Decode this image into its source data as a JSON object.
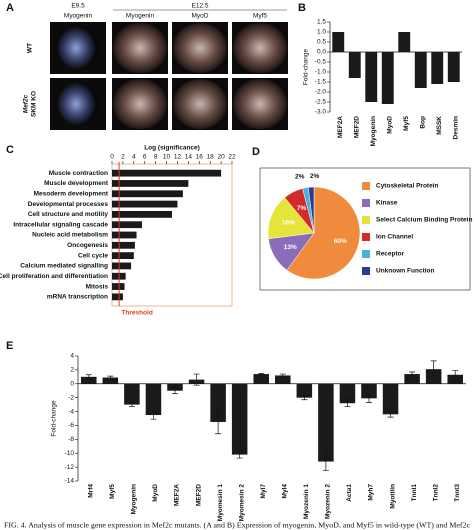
{
  "panel_a": {
    "label": "A",
    "stages": [
      "E9.5",
      "E12.5"
    ],
    "columns": [
      "Myogenin",
      "Myogenin",
      "MyoD",
      "Myf5"
    ],
    "rows": [
      {
        "lines": [
          "WT"
        ]
      },
      {
        "lines": [
          "Mef2c",
          "SKM KO"
        ]
      }
    ]
  },
  "chart_data": [
    {
      "type": "bar",
      "panel": "B",
      "ylabel": "Fold-change",
      "categories": [
        "MEF2A",
        "MEF2D",
        "Myogenin",
        "MyoD",
        "Myf5",
        "Bop",
        "MSSK",
        "Desmin"
      ],
      "values": [
        1.0,
        -1.3,
        -2.5,
        -2.6,
        1.0,
        -1.8,
        -1.6,
        -1.5
      ],
      "color": "#1a1a1a",
      "ylim": [
        -3.0,
        1.5
      ],
      "yticks": [
        1.5,
        {
          "value": 1.0,
          "label": "1.0"
        },
        0.5,
        {
          "value": 0.0,
          "label": "0.0"
        },
        -0.5,
        {
          "value": -1.0,
          "label": "-1.0"
        },
        -1.5,
        {
          "value": -2.0,
          "label": "-2.0"
        },
        -2.5,
        {
          "value": -3.0,
          "label": "-3.0"
        }
      ]
    },
    {
      "type": "barh",
      "panel": "C",
      "xlabel": "Log (significance)",
      "categories": [
        "Muscle contraction",
        "Muscle development",
        "Mesoderm development",
        "Developmental processes",
        "Cell structure and motility",
        "Intracellular signaling cascade",
        "Nucleic acid metabolism",
        "Oncogenesis",
        "Cell cycle",
        "Calcium mediated signalling",
        "Cell proliferation and differentiation",
        "Mitosis",
        "mRNA transcription"
      ],
      "values": [
        20,
        14,
        13,
        12,
        11,
        5.5,
        4.5,
        4.2,
        4,
        3.5,
        2.5,
        2.3,
        2
      ],
      "color": "#1a1a1a",
      "xlim": [
        0,
        22
      ],
      "xticks": [
        0,
        2,
        4,
        6,
        8,
        10,
        12,
        14,
        16,
        18,
        20,
        22
      ],
      "threshold": 1.3,
      "threshold_label": "Threshold",
      "threshold_color": "#e0401a"
    },
    {
      "type": "pie",
      "panel": "D",
      "categories": [
        "Cytoskeletal Protein",
        "Kinase",
        "Select Calcium Binding Protein",
        "Ion Channel",
        "Receptor",
        "Unknown Function"
      ],
      "values": [
        60,
        13,
        16,
        7,
        2,
        2
      ],
      "value_labels": [
        "60%",
        "13%",
        "16%",
        "7%",
        "2%",
        "2%"
      ],
      "colors": [
        "#f08a3c",
        "#8b6cb8",
        "#e4e43a",
        "#d42a2a",
        "#4aaee0",
        "#2c3d8f"
      ]
    },
    {
      "type": "bar",
      "panel": "E",
      "ylabel": "Fold-change",
      "categories": [
        "Mrf4",
        "Myf5",
        "Myogenin",
        "MyoD",
        "MEF2A",
        "MEF2D",
        "Myomesin 1",
        "Myomesin 2",
        "Myl7",
        "Myl4",
        "Myozenin 1",
        "Myozenin 2",
        "Acta1",
        "Myh7",
        "Myotilin",
        "Tnnl1",
        "Tnnl2",
        "Tnnt3"
      ],
      "values": [
        1.0,
        0.9,
        -3.0,
        -4.5,
        -1.0,
        0.6,
        -5.5,
        -10.2,
        1.4,
        1.2,
        -2.0,
        -11.2,
        -2.8,
        -2.1,
        -4.4,
        1.4,
        2.1,
        1.3
      ],
      "errors": [
        0.3,
        0.2,
        0.3,
        0.6,
        0.4,
        0.8,
        1.7,
        0.5,
        0.1,
        0.2,
        0.3,
        1.3,
        0.5,
        0.6,
        0.4,
        0.3,
        1.2,
        0.6
      ],
      "color": "#1a1a1a",
      "ylim": [
        -14,
        4
      ],
      "yticks": [
        4,
        2,
        0,
        -2,
        -4,
        -6,
        -8,
        -10,
        -12,
        -14
      ]
    }
  ],
  "caption": "FIG. 4. Analysis of muscle gene expression in Mef2c mutants. (A and B) Expression of myogenin, MyoD, and Myf5 in wild-type (WT) and Mef2c"
}
